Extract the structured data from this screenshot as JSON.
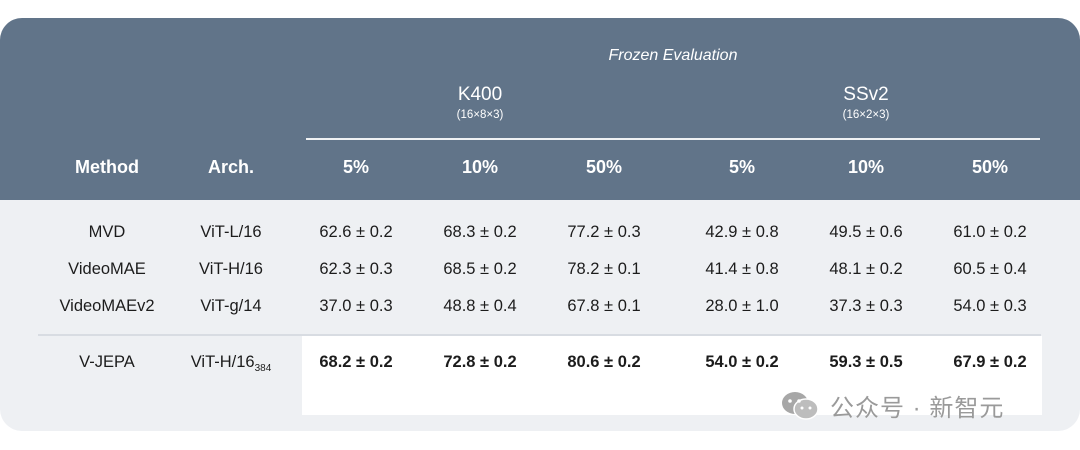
{
  "header": {
    "frozen_label": "Frozen Evaluation",
    "groups": [
      {
        "title": "K400",
        "sub": "(16×8×3)"
      },
      {
        "title": "SSv2",
        "sub": "(16×2×3)"
      }
    ],
    "columns": {
      "method": "Method",
      "arch": "Arch.",
      "splits": [
        "5%",
        "10%",
        "50%",
        "5%",
        "10%",
        "50%"
      ]
    }
  },
  "rows": [
    {
      "method": "MVD",
      "arch": "ViT-L/16",
      "arch_sub": "",
      "values": [
        "62.6 ± 0.2",
        "68.3 ± 0.2",
        "77.2 ± 0.3",
        "42.9 ± 0.8",
        "49.5 ± 0.6",
        "61.0 ± 0.2"
      ]
    },
    {
      "method": "VideoMAE",
      "arch": "ViT-H/16",
      "arch_sub": "",
      "values": [
        "62.3 ± 0.3",
        "68.5 ± 0.2",
        "78.2 ± 0.1",
        "41.4 ± 0.8",
        "48.1 ± 0.2",
        "60.5 ± 0.4"
      ]
    },
    {
      "method": "VideoMAEv2",
      "arch": "ViT-g/14",
      "arch_sub": "",
      "values": [
        "37.0 ± 0.3",
        "48.8 ± 0.4",
        "67.8 ± 0.1",
        "28.0 ± 1.0",
        "37.3 ± 0.3",
        "54.0 ± 0.3"
      ]
    },
    {
      "method": "V-JEPA",
      "arch": "ViT-H/16",
      "arch_sub": "384",
      "values": [
        "68.2 ± 0.2",
        "72.8 ± 0.2",
        "80.6 ± 0.2",
        "54.0 ± 0.2",
        "59.3 ± 0.5",
        "67.9 ± 0.2"
      ]
    }
  ],
  "watermark": {
    "text": "公众号 · 新智元",
    "icon": "wechat-icon"
  }
}
